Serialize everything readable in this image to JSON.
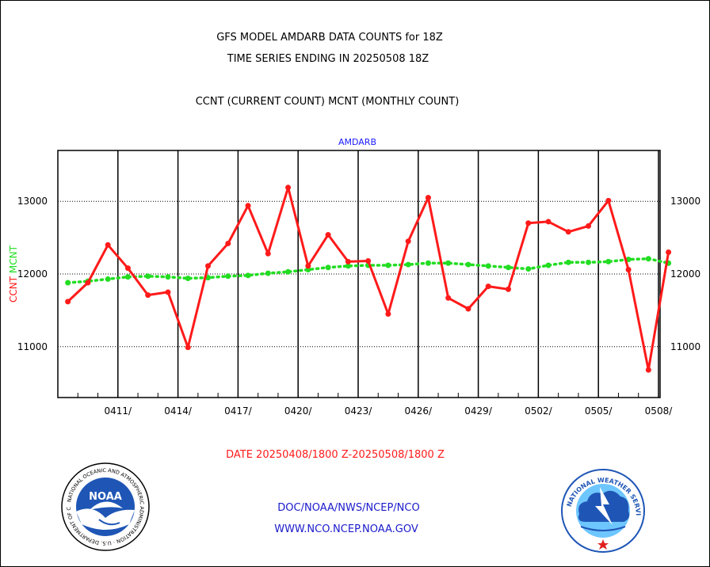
{
  "titles": {
    "line1": "GFS MODEL AMDARB DATA COUNTS for 18Z",
    "line2": "TIME SERIES ENDING IN 20250508 18Z",
    "line3": "CCNT (CURRENT COUNT) MCNT (MONTHLY COUNT)"
  },
  "footer": {
    "date_range": "DATE 20250408/1800 Z-20250508/1800 Z",
    "org_path": "DOC/NOAA/NWS/NCEP/NCO",
    "website": "WWW.NCO.NCEP.NOAA.GOV"
  },
  "logos": {
    "noaa_text": "NOAA",
    "noaa_ring": "NATIONAL OCEANIC AND ATMOSPHERIC ADMINISTRATION · U.S. DEPARTMENT OF COMMERCE",
    "nws_ring": "NATIONAL WEATHER SERVICE"
  },
  "colors": {
    "ccnt": "#ff1a1a",
    "mcnt": "#22dd22",
    "title": "#000000",
    "series_label": "#1a1aff",
    "footer_date": "#ff1a1a",
    "footer_links": "#1a1acc"
  },
  "chart_data": {
    "type": "line",
    "title": "AMDARB",
    "ylabel_left": [
      "CCNT",
      "MCNT"
    ],
    "x_tick_labels": [
      "0411/",
      "0414/",
      "0417/",
      "0420/",
      "0423/",
      "0426/",
      "0429/",
      "0502/",
      "0505/",
      "0508/"
    ],
    "x_range": [
      "2025-04-08",
      "2025-05-08"
    ],
    "ylim": [
      10300,
      13700
    ],
    "y_ticks": [
      11000,
      12000,
      13000
    ],
    "grid": true,
    "series": [
      {
        "name": "CCNT",
        "style": "solid",
        "x": [
          "2025-04-08",
          "2025-04-09",
          "2025-04-10",
          "2025-04-11",
          "2025-04-12",
          "2025-04-13",
          "2025-04-14",
          "2025-04-15",
          "2025-04-16",
          "2025-04-17",
          "2025-04-18",
          "2025-04-19",
          "2025-04-20",
          "2025-04-21",
          "2025-04-22",
          "2025-04-23",
          "2025-04-24",
          "2025-04-25",
          "2025-04-26",
          "2025-04-27",
          "2025-04-28",
          "2025-04-29",
          "2025-04-30",
          "2025-05-01",
          "2025-05-02",
          "2025-05-03",
          "2025-05-04",
          "2025-05-05",
          "2025-05-06",
          "2025-05-07",
          "2025-05-08"
        ],
        "values": [
          11620,
          11880,
          12400,
          12080,
          11710,
          11750,
          10990,
          12110,
          12420,
          12940,
          12280,
          13190,
          12110,
          12540,
          12170,
          12180,
          11450,
          12450,
          13050,
          11670,
          11520,
          11830,
          11790,
          12700,
          12720,
          12580,
          12660,
          13010,
          12060,
          10680,
          12300
        ]
      },
      {
        "name": "MCNT",
        "style": "dotted",
        "x": [
          "2025-04-08",
          "2025-04-09",
          "2025-04-10",
          "2025-04-11",
          "2025-04-12",
          "2025-04-13",
          "2025-04-14",
          "2025-04-15",
          "2025-04-16",
          "2025-04-17",
          "2025-04-18",
          "2025-04-19",
          "2025-04-20",
          "2025-04-21",
          "2025-04-22",
          "2025-04-23",
          "2025-04-24",
          "2025-04-25",
          "2025-04-26",
          "2025-04-27",
          "2025-04-28",
          "2025-04-29",
          "2025-04-30",
          "2025-05-01",
          "2025-05-02",
          "2025-05-03",
          "2025-05-04",
          "2025-05-05",
          "2025-05-06",
          "2025-05-07",
          "2025-05-08"
        ],
        "values": [
          11880,
          11900,
          11930,
          11960,
          11970,
          11960,
          11940,
          11950,
          11970,
          11980,
          12010,
          12030,
          12060,
          12090,
          12110,
          12120,
          12120,
          12130,
          12150,
          12150,
          12130,
          12110,
          12090,
          12070,
          12120,
          12160,
          12160,
          12170,
          12200,
          12210,
          12150
        ]
      }
    ]
  }
}
